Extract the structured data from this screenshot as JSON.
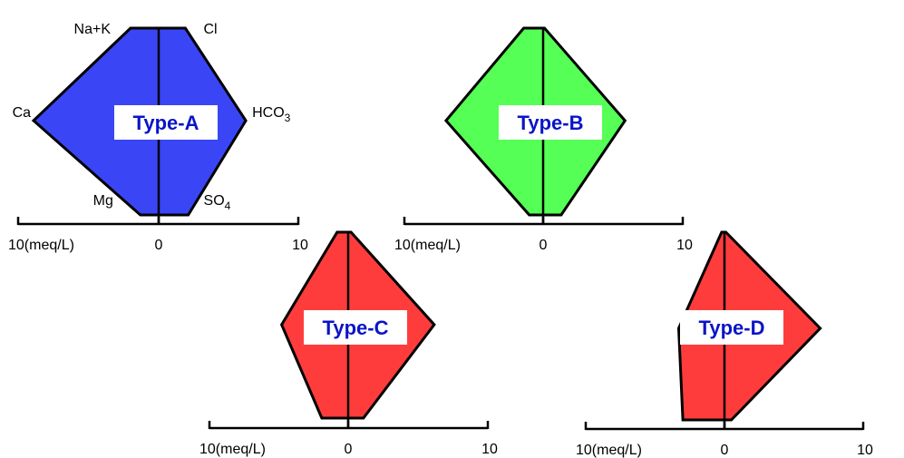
{
  "chart_data": [
    {
      "type": "stiff",
      "title": "Type-A",
      "fill": "#3a46f5",
      "scale_max": 10,
      "unit_label": "10(meq/L)",
      "center_label": "0",
      "right_label": "10",
      "show_ion_labels": true,
      "ion_labels": {
        "nak": "Na+K",
        "cl": "Cl",
        "ca": "Ca",
        "hco3": "HCO",
        "hco3_sub": "3",
        "mg": "Mg",
        "so4": "SO",
        "so4_sub": "4"
      },
      "cations": {
        "nak": 2.0,
        "ca": 8.9,
        "mg": 1.3
      },
      "anions": {
        "cl": 1.9,
        "hco3": 6.2,
        "so4": 2.1
      }
    },
    {
      "type": "stiff",
      "title": "Type-B",
      "fill": "#55ff55",
      "scale_max": 10,
      "unit_label": "10(meq/L)",
      "center_label": "0",
      "right_label": "10",
      "show_ion_labels": false,
      "cations": {
        "nak": 1.4,
        "ca": 7.0,
        "mg": 1.0
      },
      "anions": {
        "cl": 0.1,
        "hco3": 5.9,
        "so4": 1.3
      }
    },
    {
      "type": "stiff",
      "title": "Type-C",
      "fill": "#ff3c3c",
      "scale_max": 10,
      "unit_label": "10(meq/L)",
      "center_label": "0",
      "right_label": "10",
      "show_ion_labels": false,
      "cations": {
        "nak": 0.8,
        "ca": 4.8,
        "mg": 1.9
      },
      "anions": {
        "cl": 0.2,
        "hco3": 6.2,
        "so4": 1.1
      }
    },
    {
      "type": "stiff",
      "title": "Type-D",
      "fill": "#ff3c3c",
      "scale_max": 10,
      "unit_label": "10(meq/L)",
      "center_label": "0",
      "right_label": "10",
      "show_ion_labels": false,
      "cations": {
        "nak": 0.2,
        "ca": 3.3,
        "mg": 3.0
      },
      "anions": {
        "cl": 0.1,
        "hco3": 6.9,
        "so4": 0.5
      }
    }
  ]
}
